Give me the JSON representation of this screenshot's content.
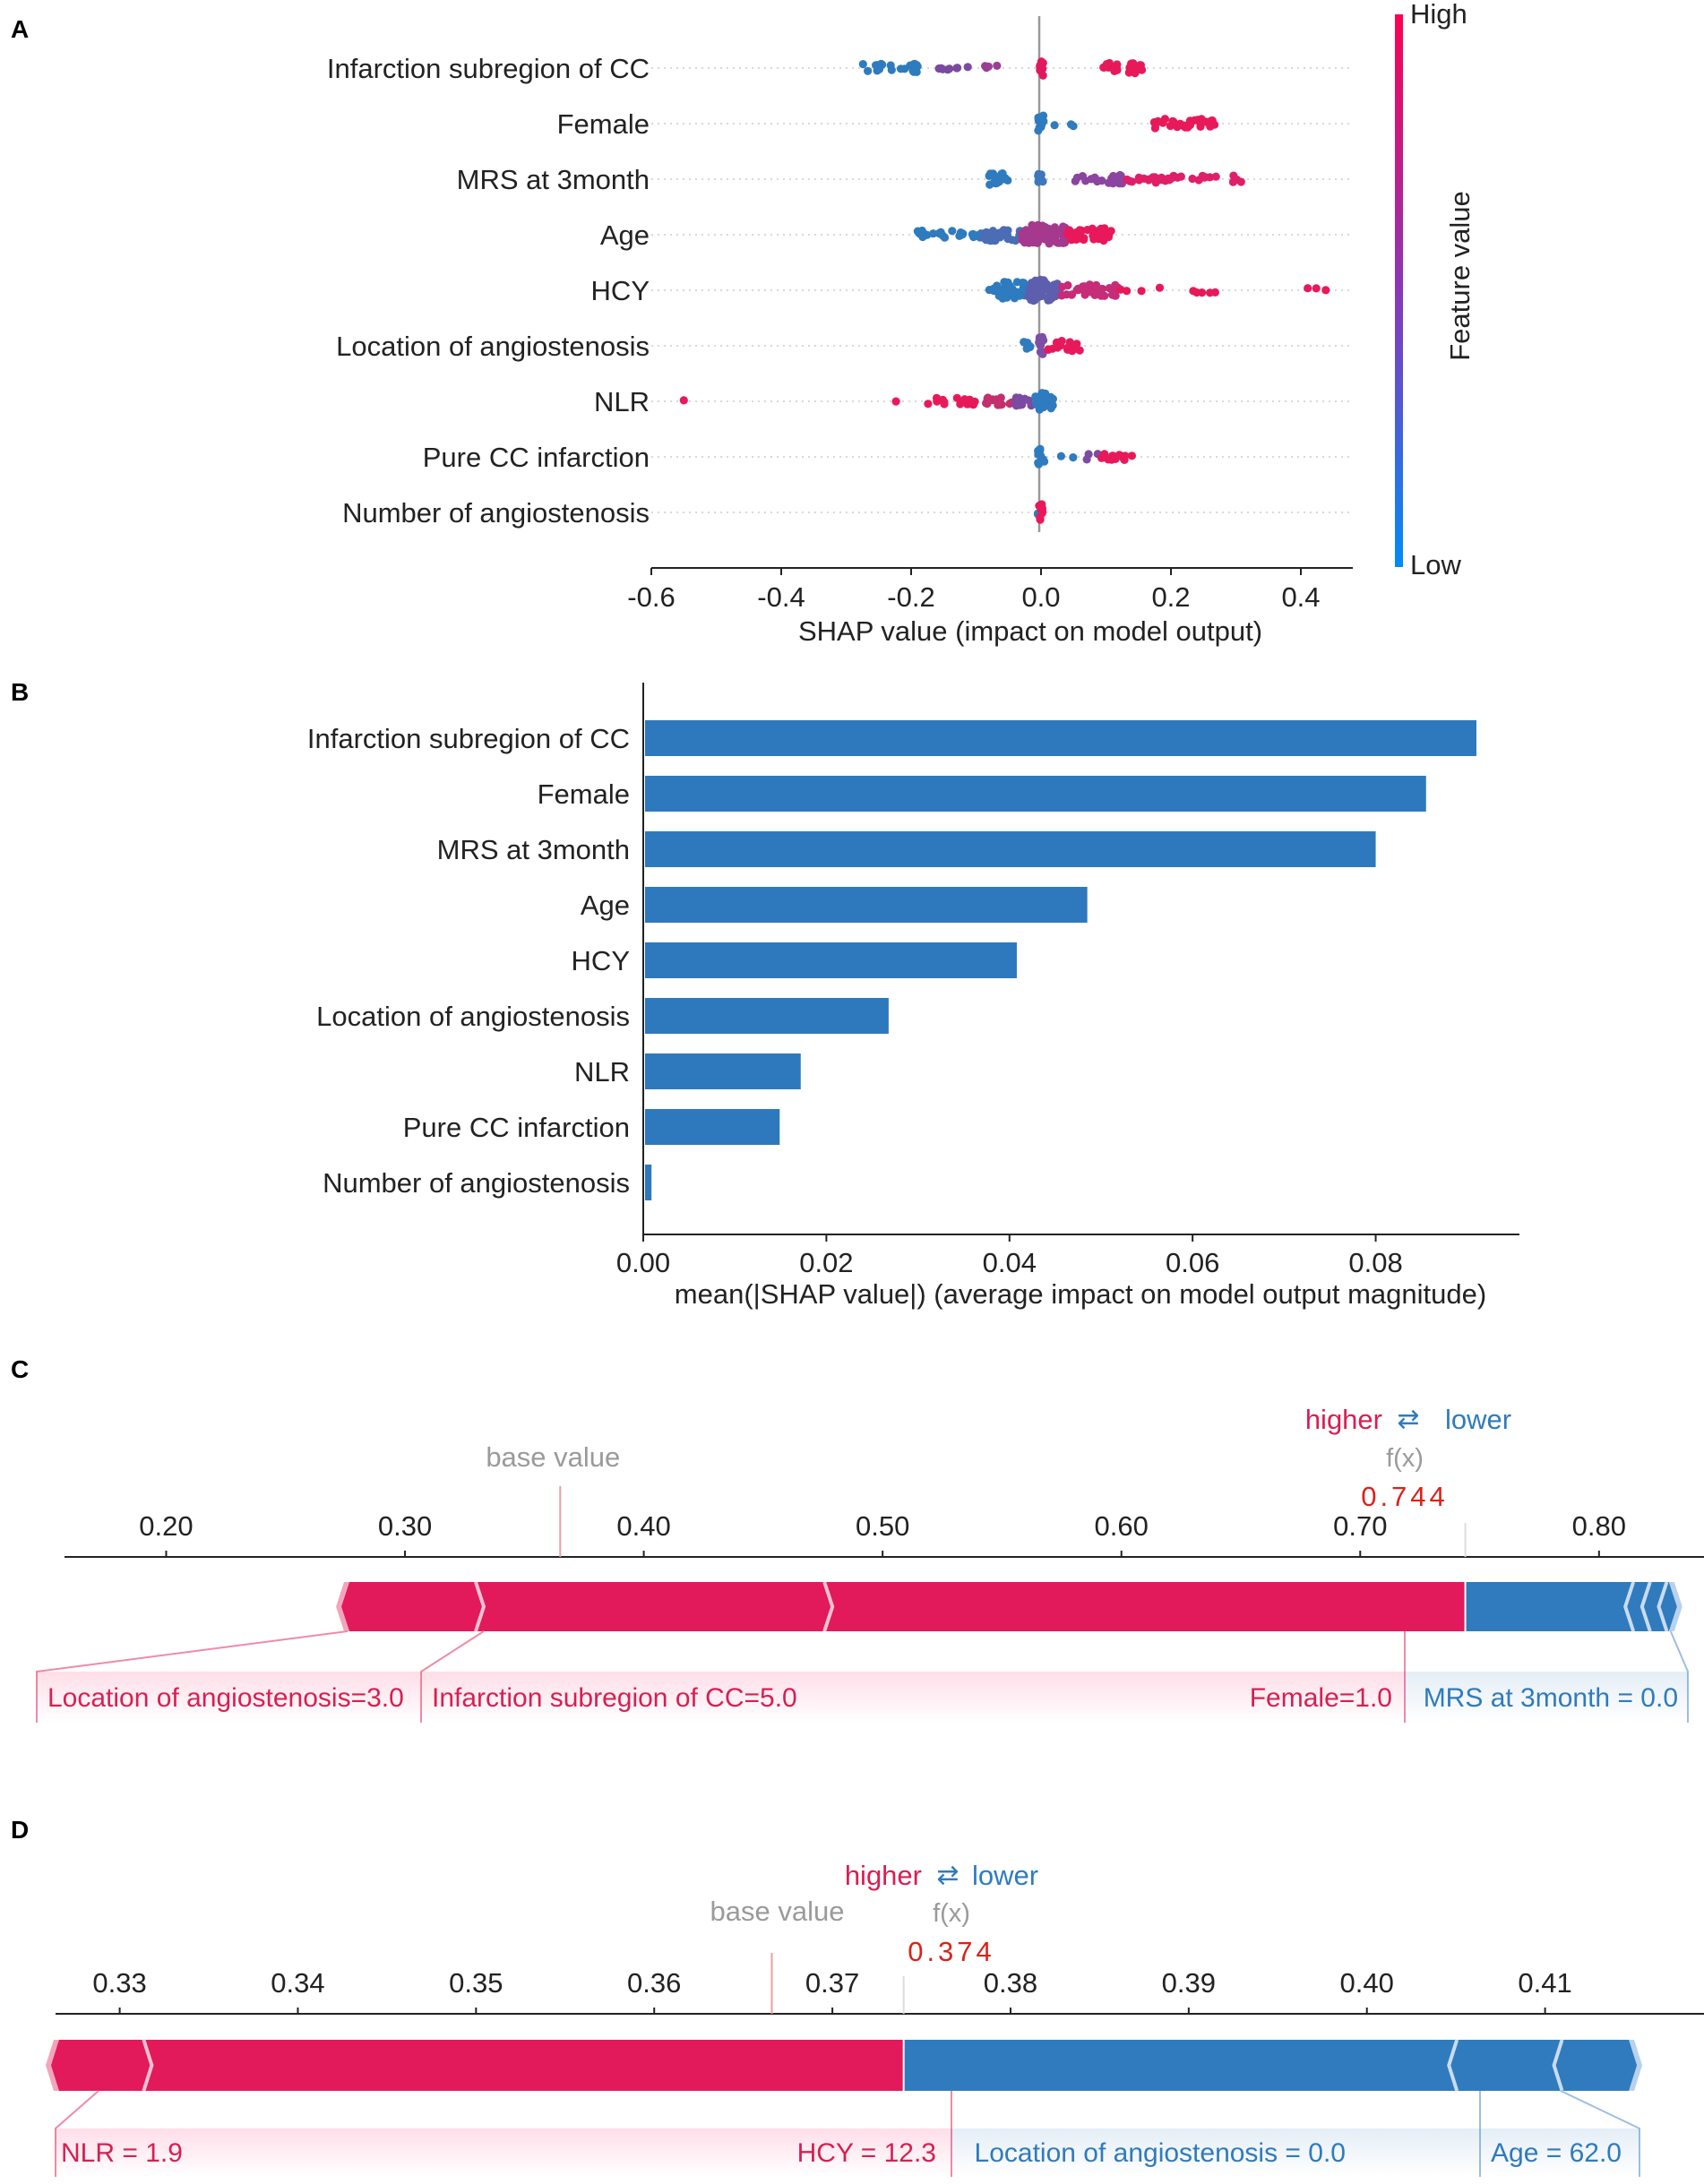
{
  "panel_labels": [
    "A",
    "B",
    "C",
    "D"
  ],
  "chart_data": [
    {
      "id": "A",
      "type": "scatter",
      "subtype": "shap-beeswarm",
      "features": [
        "Infarction subregion of CC",
        "Female",
        "MRS at 3month",
        "Age",
        "HCY",
        "Location of angiostenosis",
        "NLR",
        "Pure CC infarction",
        "Number of angiostenosis"
      ],
      "xlabel": "SHAP value (impact on model output)",
      "xlim": [
        -0.6,
        0.48
      ],
      "xticks": [
        -0.6,
        -0.4,
        -0.2,
        0.0,
        0.2,
        0.4
      ],
      "xtick_labels": [
        "-0.6",
        "-0.4",
        "-0.2",
        "0.0",
        "0.2",
        "0.4"
      ],
      "colorbar": {
        "label": "Feature value",
        "high": "High",
        "low": "Low",
        "high_color": "#ff0052",
        "low_color": "#008bfb"
      },
      "clusters": [
        {
          "feature": 0,
          "groups": [
            {
              "lo": -0.275,
              "hi": -0.19,
              "color": "#2e7bbf",
              "n": 24
            },
            {
              "lo": -0.16,
              "hi": -0.11,
              "color": "#7a4aa0",
              "n": 8
            },
            {
              "lo": -0.09,
              "hi": -0.05,
              "color": "#9b3f92",
              "n": 4
            },
            {
              "lo": -0.004,
              "hi": 0.004,
              "color": "#e0195f",
              "n": 12
            },
            {
              "lo": 0.095,
              "hi": 0.16,
              "color": "#e8195a",
              "n": 26
            }
          ]
        },
        {
          "feature": 1,
          "groups": [
            {
              "lo": -0.005,
              "hi": 0.005,
              "color": "#2e7bbf",
              "n": 14
            },
            {
              "lo": 0.02,
              "hi": 0.05,
              "color": "#2e7bbf",
              "n": 3
            },
            {
              "lo": 0.17,
              "hi": 0.275,
              "color": "#e8195a",
              "n": 34
            }
          ]
        },
        {
          "feature": 2,
          "groups": [
            {
              "lo": -0.08,
              "hi": -0.05,
              "color": "#2e7bbf",
              "n": 18
            },
            {
              "lo": -0.005,
              "hi": 0.005,
              "color": "#3c78bb",
              "n": 8
            },
            {
              "lo": 0.05,
              "hi": 0.13,
              "color": "#8b44a0",
              "n": 22
            },
            {
              "lo": 0.13,
              "hi": 0.31,
              "color": "#e01f68",
              "n": 34
            }
          ]
        },
        {
          "feature": 3,
          "groups": [
            {
              "lo": -0.19,
              "hi": -0.09,
              "color": "#2e7bbf",
              "n": 28
            },
            {
              "lo": -0.09,
              "hi": -0.03,
              "color": "#4a6db5",
              "n": 34
            },
            {
              "lo": -0.03,
              "hi": 0.04,
              "color": "#a4398e",
              "n": 70
            },
            {
              "lo": 0.04,
              "hi": 0.11,
              "color": "#e8195a",
              "n": 40
            }
          ]
        },
        {
          "feature": 4,
          "groups": [
            {
              "lo": -0.08,
              "hi": -0.02,
              "color": "#2e7bbf",
              "n": 50
            },
            {
              "lo": -0.02,
              "hi": 0.03,
              "color": "#5d5fae",
              "n": 60
            },
            {
              "lo": 0.03,
              "hi": 0.12,
              "color": "#c62c77",
              "n": 40
            },
            {
              "lo": 0.12,
              "hi": 0.27,
              "color": "#e8195a",
              "n": 9
            },
            {
              "lo": 0.41,
              "hi": 0.44,
              "color": "#e8195a",
              "n": 3
            }
          ]
        },
        {
          "feature": 5,
          "groups": [
            {
              "lo": -0.03,
              "hi": -0.015,
              "color": "#2e7bbf",
              "n": 6
            },
            {
              "lo": -0.004,
              "hi": 0.004,
              "color": "#7d4ea5",
              "n": 14
            },
            {
              "lo": 0.01,
              "hi": 0.065,
              "color": "#e8195a",
              "n": 22
            }
          ]
        },
        {
          "feature": 6,
          "groups": [
            {
              "lo": -0.55,
              "hi": -0.55,
              "color": "#e8195a",
              "n": 1
            },
            {
              "lo": -0.23,
              "hi": -0.22,
              "color": "#e8195a",
              "n": 1
            },
            {
              "lo": -0.18,
              "hi": -0.1,
              "color": "#e8195a",
              "n": 16
            },
            {
              "lo": -0.1,
              "hi": -0.04,
              "color": "#c3306d",
              "n": 14
            },
            {
              "lo": -0.04,
              "hi": -0.01,
              "color": "#7b4aa2",
              "n": 10
            },
            {
              "lo": -0.01,
              "hi": 0.02,
              "color": "#2e7bbf",
              "n": 30
            }
          ]
        },
        {
          "feature": 7,
          "groups": [
            {
              "lo": -0.005,
              "hi": 0.005,
              "color": "#2e7bbf",
              "n": 14
            },
            {
              "lo": 0.03,
              "hi": 0.05,
              "color": "#2e7bbf",
              "n": 2
            },
            {
              "lo": 0.07,
              "hi": 0.09,
              "color": "#7f4aa1",
              "n": 3
            },
            {
              "lo": 0.09,
              "hi": 0.145,
              "color": "#e8195a",
              "n": 14
            }
          ]
        },
        {
          "feature": 8,
          "groups": [
            {
              "lo": -0.006,
              "hi": -0.004,
              "color": "#2e7bbf",
              "n": 2
            },
            {
              "lo": -0.003,
              "hi": 0.003,
              "color": "#e8195a",
              "n": 14
            }
          ]
        }
      ]
    },
    {
      "id": "B",
      "type": "bar",
      "orientation": "horizontal",
      "categories": [
        "Infarction subregion of CC",
        "Female",
        "MRS at 3month",
        "Age",
        "HCY",
        "Location of angiostenosis",
        "NLR",
        "Pure CC infarction",
        "Number of angiostenosis"
      ],
      "values": [
        0.091,
        0.0855,
        0.08,
        0.0485,
        0.0408,
        0.0268,
        0.0172,
        0.0149,
        0.0009
      ],
      "xlabel": "mean(|SHAP value|) (average impact on model output magnitude)",
      "xlim": [
        0.0,
        0.0957
      ],
      "xticks": [
        0.0,
        0.02,
        0.04,
        0.06,
        0.08
      ],
      "xtick_labels": [
        "0.00",
        "0.02",
        "0.04",
        "0.06",
        "0.08"
      ],
      "bar_color": "#2e79bd"
    },
    {
      "id": "C",
      "type": "bar",
      "subtype": "shap-force",
      "legend_higher": "higher",
      "legend_lower": "lower",
      "legend_arrow": "⇄",
      "base_label": "base value",
      "fx_label": "f(x)",
      "fx_value": "0.744",
      "fx": 0.744,
      "base_value": 0.365,
      "xlim": [
        0.1473,
        0.8267
      ],
      "xticks": [
        0.2,
        0.3,
        0.4,
        0.5,
        0.6,
        0.7,
        0.8
      ],
      "xtick_labels": [
        "0.20",
        "0.30",
        "0.40",
        "0.50",
        "0.60",
        "0.70",
        "0.80"
      ],
      "positive_segments": [
        0.276,
        0.333,
        0.479,
        0.744
      ],
      "negative_segments": [
        0.744,
        0.811,
        0.818,
        0.825,
        0.83
      ],
      "labels": [
        {
          "text": "Location of angiostenosis=3.0",
          "side": "pos",
          "lo": 0.276,
          "hi": 0.333
        },
        {
          "text": "Infarction subregion of CC=5.0",
          "side": "pos",
          "lo": 0.333,
          "hi": 0.479
        },
        {
          "text": "Female=1.0",
          "side": "pos",
          "lo": 0.479,
          "hi": 0.744
        },
        {
          "text": "MRS at 3month = 0.0",
          "side": "neg",
          "lo": 0.744,
          "hi": 0.83
        }
      ]
    },
    {
      "id": "D",
      "type": "bar",
      "subtype": "shap-force",
      "legend_higher": "higher",
      "legend_lower": "lower",
      "legend_arrow": "⇄",
      "base_label": "base value",
      "fx_label": "f(x)",
      "fx_value": "0.374",
      "fx": 0.374,
      "base_value": 0.3666,
      "xlim": [
        0.3264,
        0.4154
      ],
      "xticks": [
        0.33,
        0.34,
        0.35,
        0.36,
        0.37,
        0.38,
        0.39,
        0.4,
        0.41
      ],
      "xtick_labels": [
        "0.33",
        "0.34",
        "0.35",
        "0.36",
        "0.37",
        "0.38",
        "0.39",
        "0.40",
        "0.41"
      ],
      "positive_segments": [
        0.3265,
        0.3318,
        0.374
      ],
      "negative_segments": [
        0.374,
        0.4046,
        0.4105,
        0.4148
      ],
      "labels": [
        {
          "text": "NLR = 1.9",
          "side": "pos",
          "lo": 0.3265,
          "hi": 0.3318
        },
        {
          "text": "HCY = 12.3",
          "side": "pos",
          "lo": 0.3318,
          "hi": 0.374
        },
        {
          "text": "Location of angiostenosis = 0.0",
          "side": "neg",
          "lo": 0.374,
          "hi": 0.4046
        },
        {
          "text": "Age = 62.0",
          "side": "neg",
          "lo": 0.4046,
          "hi": 0.4105
        }
      ]
    }
  ],
  "colors": {
    "pos": "#e2195a",
    "neg": "#2f7bbd",
    "pos_text": "#d71f52",
    "neg_text": "#2f7bbd",
    "fx_text": "#d8231a",
    "muted": "#9a9a9a"
  }
}
